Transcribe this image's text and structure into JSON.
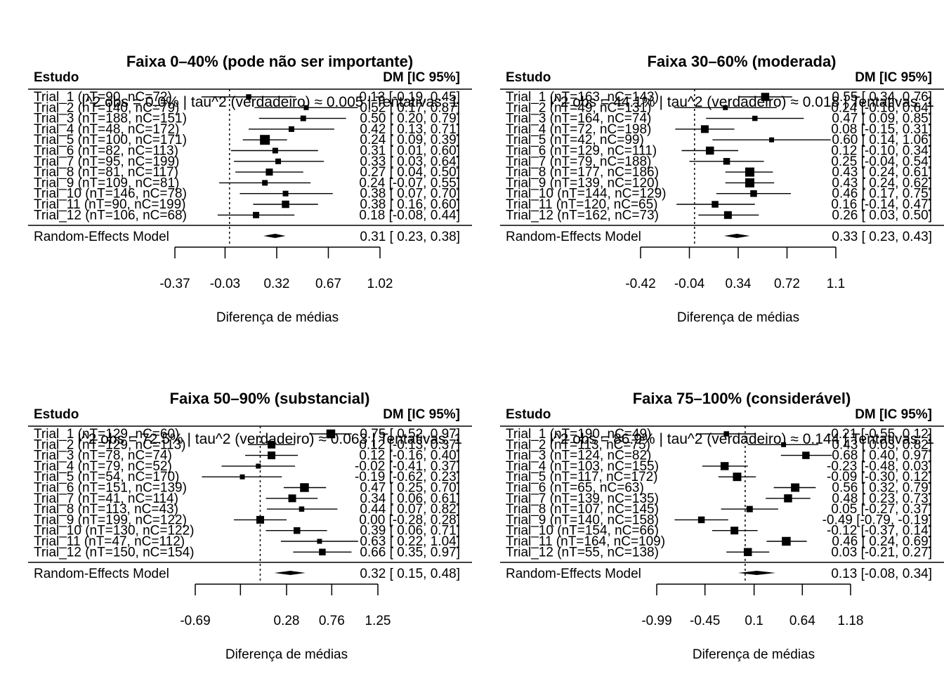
{
  "chart_data": [
    {
      "type": "forest",
      "title": "Faixa 0–40% (pode não ser importante)",
      "col_study": "Estudo",
      "col_effect": "DM [IC 95%]",
      "subtitle": "I^2 obs = 0.0% | tau^2 (verdadeiro) ≈ 0.005 | Tentativas: 1",
      "xlabel": "Diferença de médias",
      "x_ticks": [
        -0.37,
        -0.03,
        0.32,
        0.67,
        1.02
      ],
      "x_tick_labels": [
        "-0.37",
        "-0.03",
        "0.32",
        "0.67",
        "1.02"
      ],
      "xlim": [
        -0.37,
        1.02
      ],
      "ref_line": 0,
      "studies": [
        {
          "label": "Trial_1  (nT=90, nC=72)",
          "est": 0.13,
          "lo": -0.19,
          "hi": 0.45,
          "w": 0.35,
          "ci_text": "0.13 [-0.19, 0.45]"
        },
        {
          "label": "Trial_2  (nT=140, nC=79)",
          "est": 0.52,
          "lo": 0.17,
          "hi": 0.87,
          "w": 0.3,
          "ci_text": "0.52 [ 0.17, 0.87]"
        },
        {
          "label": "Trial_3  (nT=188, nC=151)",
          "est": 0.5,
          "lo": 0.2,
          "hi": 0.79,
          "w": 0.4,
          "ci_text": "0.50 [ 0.20, 0.79]"
        },
        {
          "label": "Trial_4  (nT=48, nC=172)",
          "est": 0.42,
          "lo": 0.13,
          "hi": 0.71,
          "w": 0.4,
          "ci_text": "0.42 [ 0.13, 0.71]"
        },
        {
          "label": "Trial_5  (nT=100, nC=171)",
          "est": 0.24,
          "lo": 0.09,
          "hi": 0.39,
          "w": 1.0,
          "ci_text": "0.24 [ 0.09, 0.39]"
        },
        {
          "label": "Trial_6  (nT=82, nC=113)",
          "est": 0.31,
          "lo": 0.01,
          "hi": 0.6,
          "w": 0.4,
          "ci_text": "0.31 [ 0.01, 0.60]"
        },
        {
          "label": "Trial_7  (nT=95, nC=199)",
          "est": 0.33,
          "lo": 0.03,
          "hi": 0.64,
          "w": 0.4,
          "ci_text": "0.33 [ 0.03, 0.64]"
        },
        {
          "label": "Trial_8  (nT=81, nC=117)",
          "est": 0.27,
          "lo": 0.04,
          "hi": 0.5,
          "w": 0.6,
          "ci_text": "0.27 [ 0.04, 0.50]"
        },
        {
          "label": "Trial_9  (nT=109, nC=81)",
          "est": 0.24,
          "lo": -0.07,
          "hi": 0.55,
          "w": 0.4,
          "ci_text": "0.24 [-0.07, 0.55]"
        },
        {
          "label": "Trial_10  (nT=146, nC=78)",
          "est": 0.38,
          "lo": 0.07,
          "hi": 0.7,
          "w": 0.4,
          "ci_text": "0.38 [ 0.07, 0.70]"
        },
        {
          "label": "Trial_11  (nT=90, nC=199)",
          "est": 0.38,
          "lo": 0.16,
          "hi": 0.6,
          "w": 0.65,
          "ci_text": "0.38 [ 0.16, 0.60]"
        },
        {
          "label": "Trial_12  (nT=106, nC=68)",
          "est": 0.18,
          "lo": -0.08,
          "hi": 0.44,
          "w": 0.5,
          "ci_text": "0.18 [-0.08, 0.44]"
        }
      ],
      "pooled": {
        "label": "Random-Effects Model",
        "est": 0.31,
        "lo": 0.23,
        "hi": 0.38,
        "ci_text": "0.31 [ 0.23, 0.38]"
      }
    },
    {
      "type": "forest",
      "title": "Faixa 30–60% (moderada)",
      "col_study": "Estudo",
      "col_effect": "DM [IC 95%]",
      "subtitle": "I^2 obs = 44.1% | tau^2 (verdadeiro) ≈ 0.018 | Tentativas: 1",
      "xlabel": "Diferença de médias",
      "x_ticks": [
        -0.42,
        -0.04,
        0.34,
        0.72,
        1.1
      ],
      "x_tick_labels": [
        "-0.42",
        "-0.04",
        "0.34",
        "0.72",
        "1.1"
      ],
      "xlim": [
        -0.42,
        1.1
      ],
      "ref_line": 0,
      "studies": [
        {
          "label": "Trial_1  (nT=163, nC=143)",
          "est": 0.55,
          "lo": 0.34,
          "hi": 0.76,
          "w": 0.75,
          "ci_text": "0.55 [ 0.34, 0.76]"
        },
        {
          "label": "Trial_2  (nT=49, nC=131)",
          "est": 0.24,
          "lo": -0.16,
          "hi": 0.64,
          "w": 0.3,
          "ci_text": "0.24 [-0.16, 0.64]"
        },
        {
          "label": "Trial_3  (nT=164, nC=74)",
          "est": 0.47,
          "lo": 0.09,
          "hi": 0.85,
          "w": 0.35,
          "ci_text": "0.47 [ 0.09, 0.85]"
        },
        {
          "label": "Trial_4  (nT=72, nC=198)",
          "est": 0.08,
          "lo": -0.15,
          "hi": 0.31,
          "w": 0.7,
          "ci_text": "0.08 [-0.15, 0.31]"
        },
        {
          "label": "Trial_5  (nT=42, nC=99)",
          "est": 0.6,
          "lo": 0.14,
          "hi": 1.06,
          "w": 0.3,
          "ci_text": "0.60 [ 0.14, 1.06]"
        },
        {
          "label": "Trial_6  (nT=129, nC=111)",
          "est": 0.12,
          "lo": -0.1,
          "hi": 0.34,
          "w": 0.75,
          "ci_text": "0.12 [-0.10, 0.34]"
        },
        {
          "label": "Trial_7  (nT=79, nC=188)",
          "est": 0.25,
          "lo": -0.04,
          "hi": 0.54,
          "w": 0.55,
          "ci_text": "0.25 [-0.04, 0.54]"
        },
        {
          "label": "Trial_8  (nT=177, nC=186)",
          "est": 0.43,
          "lo": 0.24,
          "hi": 0.61,
          "w": 0.9,
          "ci_text": "0.43 [ 0.24, 0.61]"
        },
        {
          "label": "Trial_9  (nT=139, nC=120)",
          "est": 0.43,
          "lo": 0.24,
          "hi": 0.62,
          "w": 0.9,
          "ci_text": "0.43 [ 0.24, 0.62]"
        },
        {
          "label": "Trial_10  (nT=144, nC=129)",
          "est": 0.46,
          "lo": 0.17,
          "hi": 0.75,
          "w": 0.55,
          "ci_text": "0.46 [ 0.17, 0.75]"
        },
        {
          "label": "Trial_11  (nT=120, nC=65)",
          "est": 0.16,
          "lo": -0.14,
          "hi": 0.47,
          "w": 0.55,
          "ci_text": "0.16 [-0.14, 0.47]"
        },
        {
          "label": "Trial_12  (nT=162, nC=73)",
          "est": 0.26,
          "lo": 0.03,
          "hi": 0.5,
          "w": 0.7,
          "ci_text": "0.26 [ 0.03, 0.50]"
        }
      ],
      "pooled": {
        "label": "Random-Effects Model",
        "est": 0.33,
        "lo": 0.23,
        "hi": 0.43,
        "ci_text": "0.33 [ 0.23, 0.43]"
      }
    },
    {
      "type": "forest",
      "title": "Faixa 50–90% (substancial)",
      "col_study": "Estudo",
      "col_effect": "DM [IC 95%]",
      "subtitle": "I^2 obs = 72.5% | tau^2 (verdadeiro) ≈ 0.063 | Tentativas: 1",
      "xlabel": "Diferença de médias",
      "x_ticks": [
        -0.69,
        -0.21,
        0.28,
        0.76,
        1.25
      ],
      "x_tick_labels": [
        "-0.69",
        "",
        "0.28",
        "0.76",
        "1.25"
      ],
      "xlim": [
        -0.69,
        1.25
      ],
      "ref_line": 0,
      "studies": [
        {
          "label": "Trial_1  (nT=129, nC=60)",
          "est": 0.75,
          "lo": 0.52,
          "hi": 0.97,
          "w": 0.85,
          "ci_text": "0.75 [ 0.52, 0.97]"
        },
        {
          "label": "Trial_2  (nT=129, nC=113)",
          "est": 0.12,
          "lo": -0.13,
          "hi": 0.37,
          "w": 0.7,
          "ci_text": "0.12 [-0.13, 0.37]"
        },
        {
          "label": "Trial_3  (nT=78, nC=74)",
          "est": 0.12,
          "lo": -0.16,
          "hi": 0.4,
          "w": 0.7,
          "ci_text": "0.12 [-0.16, 0.40]"
        },
        {
          "label": "Trial_4  (nT=79, nC=52)",
          "est": -0.02,
          "lo": -0.41,
          "hi": 0.37,
          "w": 0.3,
          "ci_text": "-0.02 [-0.41, 0.37]"
        },
        {
          "label": "Trial_5  (nT=54, nC=170)",
          "est": -0.19,
          "lo": -0.62,
          "hi": 0.23,
          "w": 0.3,
          "ci_text": "-0.19 [-0.62, 0.23]"
        },
        {
          "label": "Trial_6  (nT=151, nC=139)",
          "est": 0.47,
          "lo": 0.25,
          "hi": 0.7,
          "w": 0.85,
          "ci_text": "0.47 [ 0.25, 0.70]"
        },
        {
          "label": "Trial_7  (nT=41, nC=114)",
          "est": 0.34,
          "lo": 0.06,
          "hi": 0.61,
          "w": 0.7,
          "ci_text": "0.34 [ 0.06, 0.61]"
        },
        {
          "label": "Trial_8  (nT=113, nC=43)",
          "est": 0.44,
          "lo": 0.07,
          "hi": 0.82,
          "w": 0.35,
          "ci_text": "0.44 [ 0.07, 0.82]"
        },
        {
          "label": "Trial_9  (nT=199, nC=122)",
          "est": 0.0,
          "lo": -0.28,
          "hi": 0.28,
          "w": 0.7,
          "ci_text": "0.00 [-0.28, 0.28]"
        },
        {
          "label": "Trial_10  (nT=130, nC=122)",
          "est": 0.39,
          "lo": 0.06,
          "hi": 0.71,
          "w": 0.55,
          "ci_text": "0.39 [ 0.06, 0.71]"
        },
        {
          "label": "Trial_11  (nT=47, nC=112)",
          "est": 0.63,
          "lo": 0.22,
          "hi": 1.04,
          "w": 0.3,
          "ci_text": "0.63 [ 0.22, 1.04]"
        },
        {
          "label": "Trial_12  (nT=150, nC=154)",
          "est": 0.66,
          "lo": 0.35,
          "hi": 0.97,
          "w": 0.55,
          "ci_text": "0.66 [ 0.35, 0.97]"
        }
      ],
      "pooled": {
        "label": "Random-Effects Model",
        "est": 0.32,
        "lo": 0.15,
        "hi": 0.48,
        "ci_text": "0.32 [ 0.15, 0.48]"
      }
    },
    {
      "type": "forest",
      "title": "Faixa 75–100% (considerável)",
      "col_study": "Estudo",
      "col_effect": "DM [IC 95%]",
      "subtitle": "I^2 obs = 86.9% | tau^2 (verdadeiro) ≈ 0.144 | Tentativas: 1",
      "xlabel": "Diferença de médias",
      "x_ticks": [
        -0.99,
        -0.45,
        0.1,
        0.64,
        1.18
      ],
      "x_tick_labels": [
        "-0.99",
        "-0.45",
        "0.1",
        "0.64",
        "1.18"
      ],
      "xlim": [
        -0.99,
        1.18
      ],
      "ref_line": 0,
      "studies": [
        {
          "label": "Trial_1  (nT=190, nC=49)",
          "est": -0.21,
          "lo": -0.55,
          "hi": 0.12,
          "w": 0.35,
          "ci_text": "-0.21 [-0.55, 0.12]"
        },
        {
          "label": "Trial_2  (nT=113, nC=75)",
          "est": 0.43,
          "lo": 0.03,
          "hi": 0.82,
          "w": 0.3,
          "ci_text": "0.43 [ 0.03, 0.82]"
        },
        {
          "label": "Trial_3  (nT=124, nC=82)",
          "est": 0.68,
          "lo": 0.4,
          "hi": 0.97,
          "w": 0.65,
          "ci_text": "0.68 [ 0.40, 0.97]"
        },
        {
          "label": "Trial_4  (nT=103, nC=155)",
          "est": -0.23,
          "lo": -0.48,
          "hi": 0.03,
          "w": 0.75,
          "ci_text": "-0.23 [-0.48, 0.03]"
        },
        {
          "label": "Trial_5  (nT=117, nC=172)",
          "est": -0.09,
          "lo": -0.3,
          "hi": 0.12,
          "w": 0.8,
          "ci_text": "-0.09 [-0.30, 0.12]"
        },
        {
          "label": "Trial_6  (nT=65, nC=63)",
          "est": 0.56,
          "lo": 0.32,
          "hi": 0.79,
          "w": 0.8,
          "ci_text": "0.56 [ 0.32, 0.79]"
        },
        {
          "label": "Trial_7  (nT=139, nC=135)",
          "est": 0.48,
          "lo": 0.23,
          "hi": 0.73,
          "w": 0.75,
          "ci_text": "0.48 [ 0.23, 0.73]"
        },
        {
          "label": "Trial_8  (nT=107, nC=145)",
          "est": 0.05,
          "lo": -0.27,
          "hi": 0.37,
          "w": 0.5,
          "ci_text": "0.05 [-0.27, 0.37]"
        },
        {
          "label": "Trial_9  (nT=140, nC=158)",
          "est": -0.49,
          "lo": -0.79,
          "hi": -0.19,
          "w": 0.55,
          "ci_text": "-0.49 [-0.79, -0.19]"
        },
        {
          "label": "Trial_10  (nT=154, nC=66)",
          "est": -0.12,
          "lo": -0.37,
          "hi": 0.14,
          "w": 0.7,
          "ci_text": "-0.12 [-0.37, 0.14]"
        },
        {
          "label": "Trial_11  (nT=164, nC=109)",
          "est": 0.46,
          "lo": 0.24,
          "hi": 0.69,
          "w": 0.85,
          "ci_text": "0.46 [ 0.24, 0.69]"
        },
        {
          "label": "Trial_12  (nT=55, nC=138)",
          "est": 0.03,
          "lo": -0.21,
          "hi": 0.27,
          "w": 0.75,
          "ci_text": "0.03 [-0.21, 0.27]"
        }
      ],
      "pooled": {
        "label": "Random-Effects Model",
        "est": 0.13,
        "lo": -0.08,
        "hi": 0.34,
        "ci_text": "0.13 [-0.08,  0.34]"
      }
    }
  ]
}
